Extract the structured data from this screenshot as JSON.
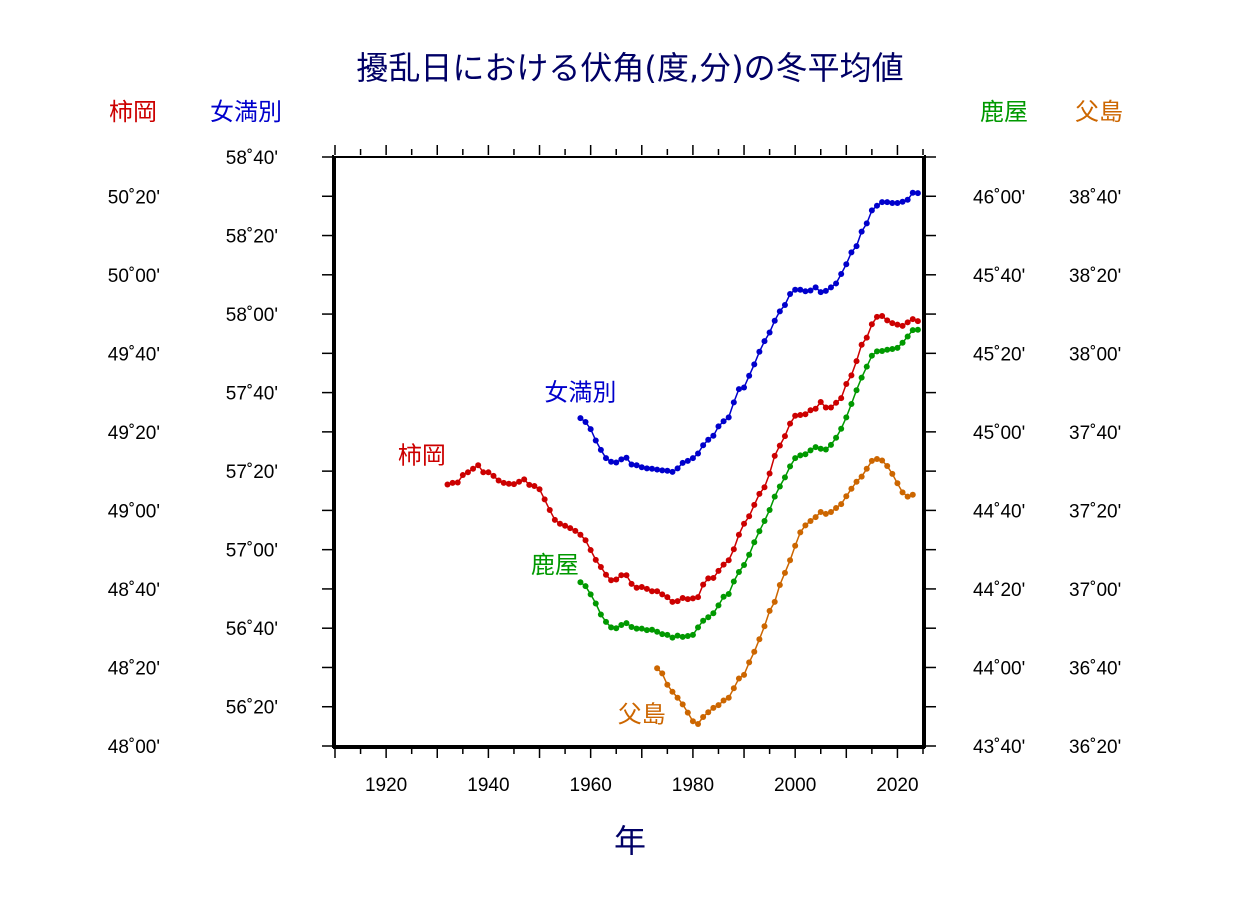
{
  "chart_data": {
    "type": "line",
    "title": "擾乱日における伏角(度,分)の冬平均値",
    "xlabel": "年",
    "xlim": [
      1910,
      2025
    ],
    "x_ticks": [
      "1920",
      "1940",
      "1960",
      "1980",
      "2000",
      "2020"
    ],
    "grid": false,
    "colors": {
      "kakioka": "#cc0000",
      "memambetsu": "#0000cc",
      "kanoya": "#009900",
      "chichijima": "#cc6600",
      "title": "#000066"
    },
    "axes": [
      {
        "name": "柿岡",
        "side": "left-outer",
        "color": "#cc0000",
        "ylim": [
          2880,
          3030
        ],
        "ticks": [
          "48˚00'",
          "48˚20'",
          "48˚40'",
          "49˚00'",
          "49˚20'",
          "49˚40'",
          "50˚00'",
          "50˚20'"
        ]
      },
      {
        "name": "女満別",
        "side": "left-inner",
        "color": "#0000cc",
        "ylim": [
          3370,
          3520
        ],
        "ticks": [
          "56˚20'",
          "56˚40'",
          "57˚00'",
          "57˚20'",
          "57˚40'",
          "58˚00'",
          "58˚20'",
          "58˚40'"
        ]
      },
      {
        "name": "鹿屋",
        "side": "right-inner",
        "color": "#009900",
        "ylim": [
          2620,
          2770
        ],
        "ticks": [
          "43˚40'",
          "44˚00'",
          "44˚20'",
          "44˚40'",
          "45˚00'",
          "45˚20'",
          "45˚40'",
          "46˚00'"
        ]
      },
      {
        "name": "父島",
        "side": "right-outer",
        "color": "#cc6600",
        "ylim": [
          2180,
          2330
        ],
        "ticks": [
          "36˚20'",
          "36˚40'",
          "37˚00'",
          "37˚20'",
          "37˚40'",
          "38˚00'",
          "38˚20'",
          "38˚40'"
        ]
      }
    ],
    "series": [
      {
        "name": "柿岡",
        "axis": 0,
        "x": [
          1932,
          1933,
          1934,
          1935,
          1936,
          1937,
          1938,
          1939,
          1940,
          1941,
          1942,
          1943,
          1944,
          1945,
          1946,
          1947,
          1948,
          1949,
          1950,
          1951,
          1952,
          1953,
          1954,
          1955,
          1956,
          1957,
          1958,
          1959,
          1960,
          1961,
          1962,
          1963,
          1964,
          1965,
          1966,
          1967,
          1968,
          1969,
          1970,
          1971,
          1972,
          1973,
          1974,
          1975,
          1976,
          1977,
          1978,
          1979,
          1980,
          1981,
          1982,
          1983,
          1984,
          1985,
          1986,
          1987,
          1988,
          1989,
          1990,
          1991,
          1992,
          1993,
          1994,
          1995,
          1996,
          1997,
          1998,
          1999,
          2000,
          2001,
          2002,
          2003,
          2004,
          2005,
          2006,
          2007,
          2008,
          2009,
          2010,
          2011,
          2012,
          2013,
          2014,
          2015,
          2016,
          2017,
          2018,
          2019,
          2020,
          2021,
          2022,
          2023,
          2024
        ],
        "values": [
          2946.6,
          2947.0,
          2947.1,
          2949.0,
          2949.7,
          2950.6,
          2951.5,
          2949.7,
          2949.7,
          2948.8,
          2947.6,
          2947.0,
          2946.8,
          2946.7,
          2947.3,
          2947.9,
          2946.5,
          2946.2,
          2945.4,
          2942.8,
          2940.1,
          2937.6,
          2936.6,
          2936.1,
          2935.5,
          2934.8,
          2933.8,
          2932.4,
          2929.9,
          2927.4,
          2925.6,
          2923.6,
          2922.2,
          2922.4,
          2923.5,
          2923.5,
          2921.3,
          2920.3,
          2920.5,
          2920.0,
          2919.4,
          2919.4,
          2918.6,
          2917.9,
          2916.7,
          2916.9,
          2917.7,
          2917.4,
          2917.6,
          2917.9,
          2921.1,
          2922.7,
          2922.8,
          2924.6,
          2926.2,
          2927.3,
          2930.1,
          2933.8,
          2936.6,
          2938.5,
          2941.4,
          2944.2,
          2945.9,
          2949.4,
          2953.9,
          2956.5,
          2958.9,
          2962.1,
          2964.1,
          2964.3,
          2964.5,
          2965.5,
          2965.9,
          2967.6,
          2966.2,
          2966.2,
          2967.4,
          2968.6,
          2972.2,
          2974.4,
          2978.0,
          2982.2,
          2984.0,
          2987.4,
          2989.3,
          2989.5,
          2988.4,
          2987.7,
          2987.3,
          2987.0,
          2987.9,
          2988.7,
          2988.2
        ]
      },
      {
        "name": "女満別",
        "axis": 1,
        "x": [
          1958,
          1959,
          1960,
          1961,
          1962,
          1963,
          1964,
          1965,
          1966,
          1967,
          1968,
          1969,
          1970,
          1971,
          1972,
          1973,
          1974,
          1975,
          1976,
          1977,
          1978,
          1979,
          1980,
          1981,
          1982,
          1983,
          1984,
          1985,
          1986,
          1987,
          1988,
          1989,
          1990,
          1991,
          1992,
          1993,
          1994,
          1995,
          1996,
          1997,
          1998,
          1999,
          2000,
          2001,
          2002,
          2003,
          2004,
          2005,
          2006,
          2007,
          2008,
          2009,
          2010,
          2011,
          2012,
          2013,
          2014,
          2015,
          2016,
          2017,
          2018,
          2019,
          2020,
          2021,
          2022,
          2023,
          2024
        ],
        "values": [
          3453.5,
          3452.5,
          3450.7,
          3447.8,
          3445.4,
          3443.3,
          3442.4,
          3442.2,
          3443.0,
          3443.4,
          3441.7,
          3441.5,
          3441.0,
          3440.7,
          3440.6,
          3440.4,
          3440.2,
          3440.1,
          3439.8,
          3440.7,
          3442.1,
          3442.6,
          3443.3,
          3444.5,
          3446.6,
          3448.0,
          3449.0,
          3451.4,
          3452.7,
          3453.7,
          3457.5,
          3460.9,
          3461.3,
          3464.3,
          3467.2,
          3470.4,
          3473.1,
          3475.3,
          3478.3,
          3480.7,
          3482.3,
          3485.1,
          3486.2,
          3486.2,
          3485.8,
          3486.0,
          3486.8,
          3485.6,
          3485.9,
          3486.8,
          3487.8,
          3490.2,
          3492.7,
          3495.7,
          3497.3,
          3501.0,
          3503.1,
          3506.4,
          3507.6,
          3508.5,
          3508.5,
          3508.3,
          3508.3,
          3508.6,
          3509.1,
          3510.9,
          3510.8
        ]
      },
      {
        "name": "鹿屋",
        "axis": 2,
        "x": [
          1958,
          1959,
          1960,
          1961,
          1962,
          1963,
          1964,
          1965,
          1966,
          1967,
          1968,
          1969,
          1970,
          1971,
          1972,
          1973,
          1974,
          1975,
          1976,
          1977,
          1978,
          1979,
          1980,
          1981,
          1982,
          1983,
          1984,
          1985,
          1986,
          1987,
          1988,
          1989,
          1990,
          1991,
          1992,
          1993,
          1994,
          1995,
          1996,
          1997,
          1998,
          1999,
          2000,
          2001,
          2002,
          2003,
          2004,
          2005,
          2006,
          2007,
          2008,
          2009,
          2010,
          2011,
          2012,
          2013,
          2014,
          2015,
          2016,
          2017,
          2018,
          2019,
          2020,
          2021,
          2022,
          2023,
          2024
        ],
        "values": [
          2661.7,
          2660.7,
          2658.6,
          2656.3,
          2653.5,
          2651.6,
          2650.2,
          2650.0,
          2650.8,
          2651.3,
          2650.3,
          2649.9,
          2649.9,
          2649.5,
          2649.6,
          2649.1,
          2648.5,
          2648.3,
          2647.6,
          2648.1,
          2647.8,
          2648.0,
          2648.3,
          2650.2,
          2651.9,
          2652.8,
          2653.8,
          2655.8,
          2658.0,
          2658.7,
          2661.9,
          2664.3,
          2666.1,
          2668.7,
          2671.9,
          2674.7,
          2677.3,
          2680.1,
          2683.5,
          2686.1,
          2688.4,
          2691.2,
          2693.3,
          2694.0,
          2694.3,
          2695.3,
          2696.1,
          2695.7,
          2695.5,
          2696.7,
          2698.5,
          2700.8,
          2703.7,
          2707.1,
          2710.6,
          2713.8,
          2716.6,
          2719.4,
          2720.5,
          2720.6,
          2720.9,
          2721.1,
          2721.4,
          2722.7,
          2724.3,
          2725.9,
          2726.0
        ]
      },
      {
        "name": "父島",
        "axis": 3,
        "x": [
          1973,
          1974,
          1975,
          1976,
          1977,
          1978,
          1979,
          1980,
          1981,
          1982,
          1983,
          1984,
          1985,
          1986,
          1987,
          1988,
          1989,
          1990,
          1991,
          1992,
          1993,
          1994,
          1995,
          1996,
          1997,
          1998,
          1999,
          2000,
          2001,
          2002,
          2003,
          2004,
          2005,
          2006,
          2007,
          2008,
          2009,
          2010,
          2011,
          2012,
          2013,
          2014,
          2015,
          2016,
          2017,
          2018,
          2019,
          2020,
          2021,
          2022,
          2023
        ],
        "values": [
          2199.8,
          2198.5,
          2195.6,
          2193.8,
          2192.3,
          2190.6,
          2188.5,
          2186.3,
          2185.6,
          2187.4,
          2188.6,
          2189.7,
          2190.4,
          2191.6,
          2192.3,
          2194.7,
          2197.2,
          2198.1,
          2201.3,
          2204.0,
          2207.2,
          2210.5,
          2214.4,
          2216.7,
          2221.0,
          2224.1,
          2227.3,
          2231.0,
          2234.4,
          2236.2,
          2237.3,
          2238.3,
          2239.6,
          2239.1,
          2239.6,
          2240.6,
          2241.6,
          2243.6,
          2245.5,
          2247.3,
          2248.6,
          2250.6,
          2252.6,
          2253.1,
          2252.7,
          2251.3,
          2249.3,
          2246.9,
          2244.6,
          2243.5,
          2244.0
        ]
      }
    ],
    "line_labels": [
      {
        "series": 0,
        "text": "柿岡",
        "year": 1927,
        "value": 2952
      },
      {
        "series": 1,
        "text": "女満別",
        "year": 1958,
        "value": 3458
      },
      {
        "series": 2,
        "text": "鹿屋",
        "year": 1953,
        "value": 2664
      },
      {
        "series": 3,
        "text": "父島",
        "year": 1970,
        "value": 2186
      }
    ]
  }
}
